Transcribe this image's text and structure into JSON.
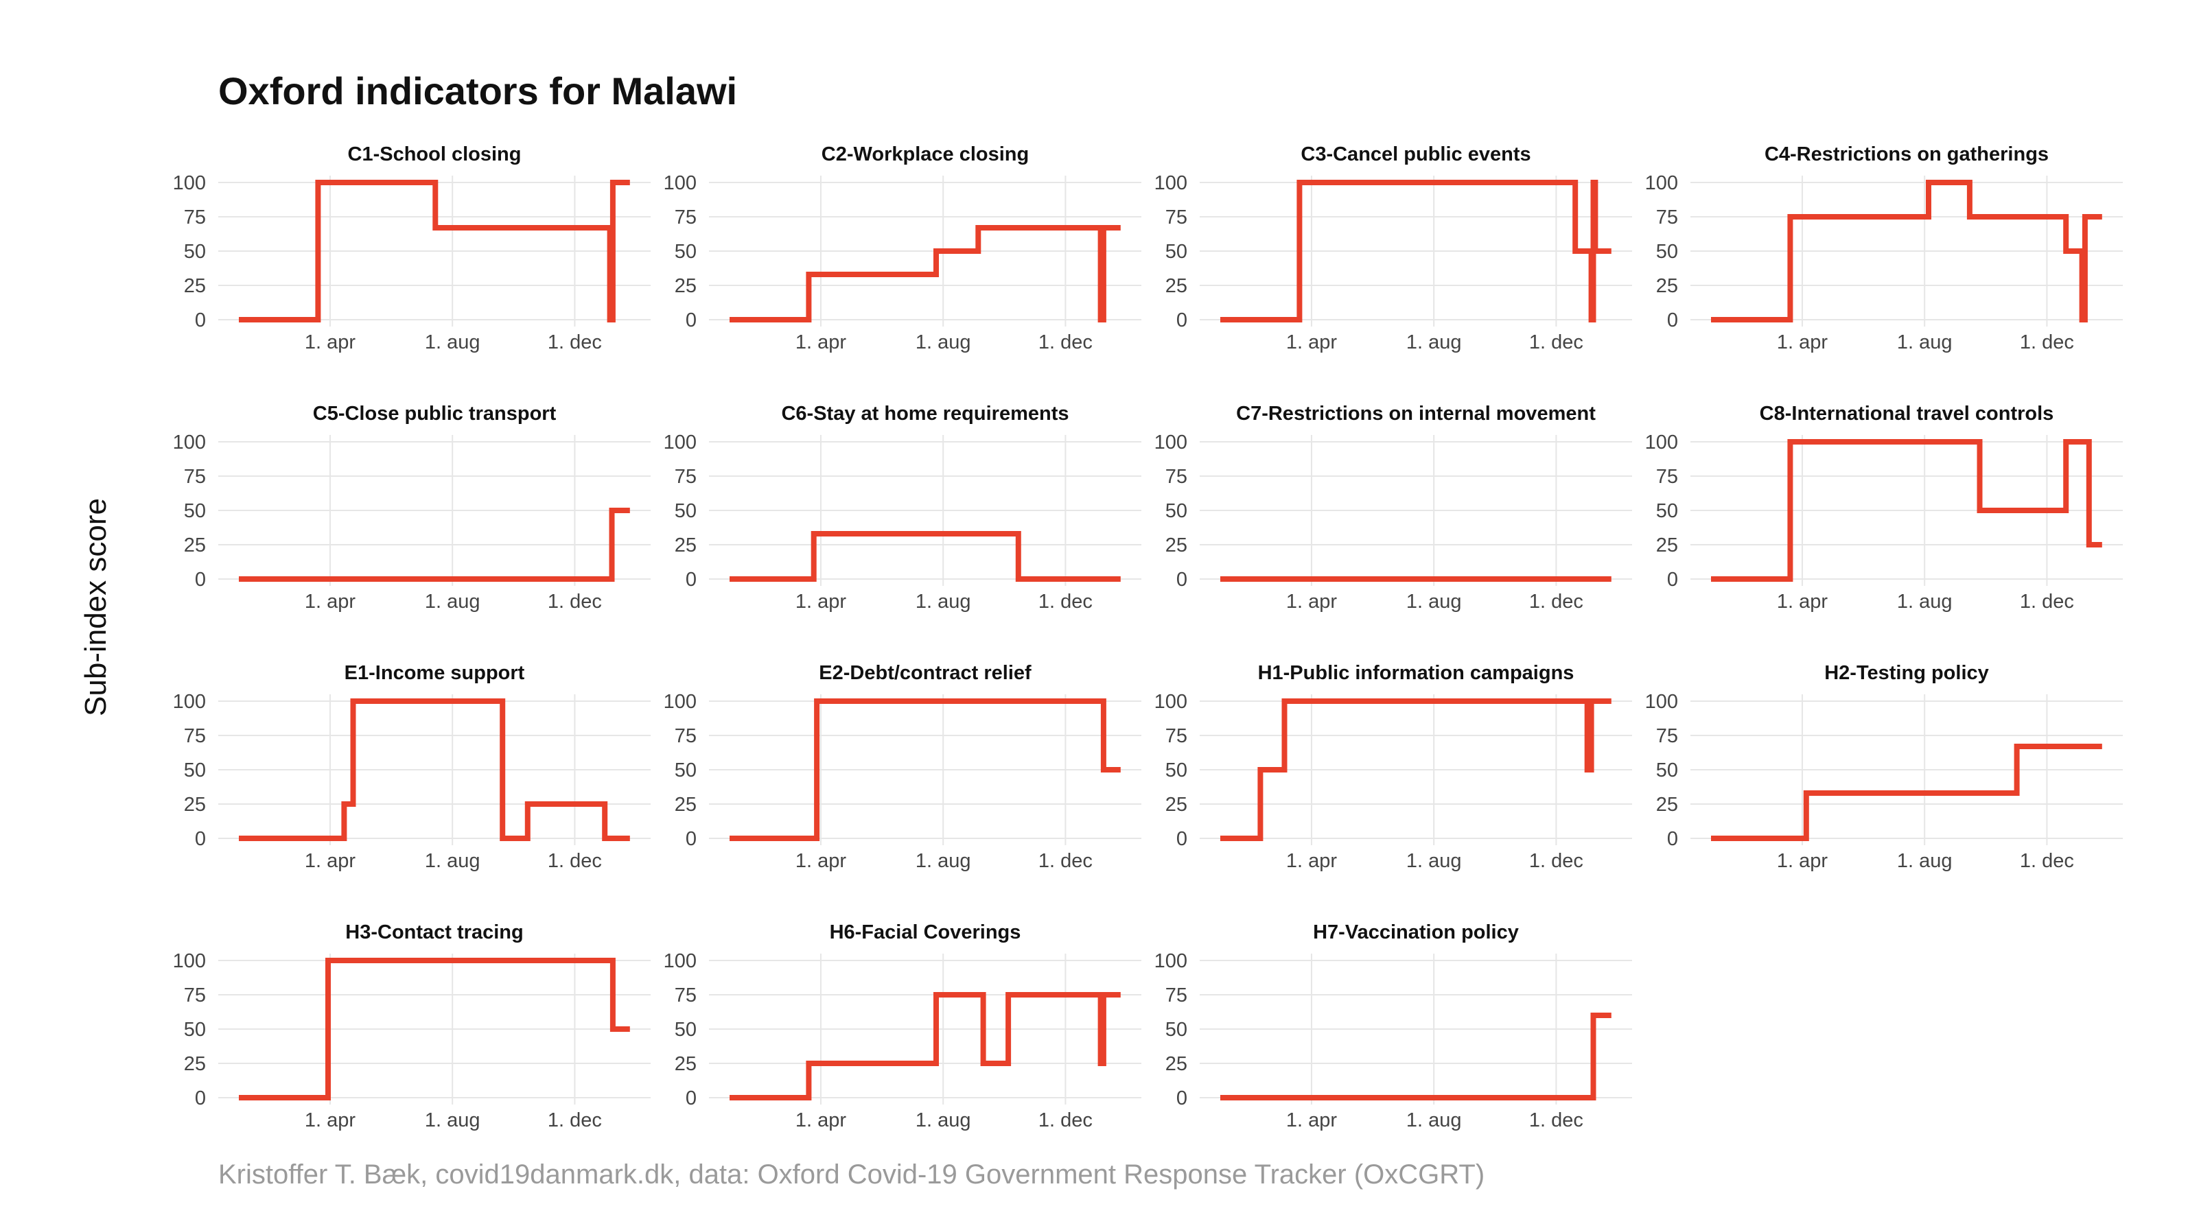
{
  "title": "Oxford indicators for Malawi",
  "ylabel": "Sub-index score",
  "caption": "Kristoffer T. Bæk, covid19danmark.dk, data: Oxford Covid-19 Government Response Tracker (OxCGRT)",
  "colors": {
    "line": "#e8402a",
    "grid": "#e6e6e6"
  },
  "chart_data": {
    "type": "line",
    "layout": "small-multiples 4x4",
    "x_ticks": [
      {
        "label": "1. apr",
        "value": "2020-04-01"
      },
      {
        "label": "1. aug",
        "value": "2020-08-01"
      },
      {
        "label": "1. dec",
        "value": "2020-12-01"
      }
    ],
    "xlim": [
      "2020-01-01",
      "2021-02-01"
    ],
    "y_ticks": [
      0,
      25,
      50,
      75,
      100
    ],
    "ylim": [
      0,
      100
    ],
    "grid": true,
    "panels": [
      {
        "title": "C1-School closing",
        "points": [
          [
            "2020-01-01",
            0
          ],
          [
            "2020-03-20",
            0
          ],
          [
            "2020-03-20",
            100
          ],
          [
            "2020-07-15",
            100
          ],
          [
            "2020-07-15",
            67
          ],
          [
            "2021-01-05",
            67
          ],
          [
            "2021-01-05",
            0
          ],
          [
            "2021-01-08",
            0
          ],
          [
            "2021-01-08",
            100
          ],
          [
            "2021-01-25",
            100
          ]
        ]
      },
      {
        "title": "C2-Workplace closing",
        "points": [
          [
            "2020-01-01",
            0
          ],
          [
            "2020-03-20",
            0
          ],
          [
            "2020-03-20",
            33
          ],
          [
            "2020-07-25",
            33
          ],
          [
            "2020-07-25",
            50
          ],
          [
            "2020-09-05",
            50
          ],
          [
            "2020-09-05",
            67
          ],
          [
            "2021-01-05",
            67
          ],
          [
            "2021-01-05",
            0
          ],
          [
            "2021-01-08",
            0
          ],
          [
            "2021-01-08",
            67
          ],
          [
            "2021-01-25",
            67
          ]
        ]
      },
      {
        "title": "C3-Cancel public events",
        "points": [
          [
            "2020-01-01",
            0
          ],
          [
            "2020-03-20",
            0
          ],
          [
            "2020-03-20",
            100
          ],
          [
            "2020-12-20",
            100
          ],
          [
            "2020-12-20",
            50
          ],
          [
            "2021-01-05",
            50
          ],
          [
            "2021-01-05",
            0
          ],
          [
            "2021-01-07",
            0
          ],
          [
            "2021-01-07",
            100
          ],
          [
            "2021-01-09",
            100
          ],
          [
            "2021-01-09",
            50
          ],
          [
            "2021-01-25",
            50
          ]
        ]
      },
      {
        "title": "C4-Restrictions on gatherings",
        "points": [
          [
            "2020-01-01",
            0
          ],
          [
            "2020-03-20",
            0
          ],
          [
            "2020-03-20",
            75
          ],
          [
            "2020-08-05",
            75
          ],
          [
            "2020-08-05",
            100
          ],
          [
            "2020-09-15",
            100
          ],
          [
            "2020-09-15",
            75
          ],
          [
            "2020-12-20",
            75
          ],
          [
            "2020-12-20",
            50
          ],
          [
            "2021-01-05",
            50
          ],
          [
            "2021-01-05",
            0
          ],
          [
            "2021-01-08",
            0
          ],
          [
            "2021-01-08",
            75
          ],
          [
            "2021-01-25",
            75
          ]
        ]
      },
      {
        "title": "C5-Close public transport",
        "points": [
          [
            "2020-01-01",
            0
          ],
          [
            "2021-01-07",
            0
          ],
          [
            "2021-01-07",
            50
          ],
          [
            "2021-01-25",
            50
          ]
        ]
      },
      {
        "title": "C6-Stay at home requirements",
        "points": [
          [
            "2020-01-01",
            0
          ],
          [
            "2020-03-25",
            0
          ],
          [
            "2020-03-25",
            33
          ],
          [
            "2020-10-15",
            33
          ],
          [
            "2020-10-15",
            0
          ],
          [
            "2021-01-25",
            0
          ]
        ]
      },
      {
        "title": "C7-Restrictions on internal movement",
        "points": [
          [
            "2020-01-01",
            0
          ],
          [
            "2021-01-25",
            0
          ]
        ]
      },
      {
        "title": "C8-International travel controls",
        "points": [
          [
            "2020-01-01",
            0
          ],
          [
            "2020-03-20",
            0
          ],
          [
            "2020-03-20",
            100
          ],
          [
            "2020-09-25",
            100
          ],
          [
            "2020-09-25",
            50
          ],
          [
            "2020-12-20",
            50
          ],
          [
            "2020-12-20",
            100
          ],
          [
            "2021-01-12",
            100
          ],
          [
            "2021-01-12",
            25
          ],
          [
            "2021-01-25",
            25
          ]
        ]
      },
      {
        "title": "E1-Income support",
        "points": [
          [
            "2020-01-01",
            0
          ],
          [
            "2020-04-15",
            0
          ],
          [
            "2020-04-15",
            25
          ],
          [
            "2020-04-24",
            25
          ],
          [
            "2020-04-24",
            100
          ],
          [
            "2020-09-20",
            100
          ],
          [
            "2020-09-20",
            0
          ],
          [
            "2020-10-15",
            0
          ],
          [
            "2020-10-15",
            25
          ],
          [
            "2020-12-31",
            25
          ],
          [
            "2020-12-31",
            0
          ],
          [
            "2021-01-25",
            0
          ]
        ]
      },
      {
        "title": "E2-Debt/contract relief",
        "points": [
          [
            "2020-01-01",
            0
          ],
          [
            "2020-03-28",
            0
          ],
          [
            "2020-03-28",
            100
          ],
          [
            "2021-01-08",
            100
          ],
          [
            "2021-01-08",
            50
          ],
          [
            "2021-01-25",
            50
          ]
        ]
      },
      {
        "title": "H1-Public information campaigns",
        "points": [
          [
            "2020-01-01",
            0
          ],
          [
            "2020-02-10",
            0
          ],
          [
            "2020-02-10",
            50
          ],
          [
            "2020-03-05",
            50
          ],
          [
            "2020-03-05",
            100
          ],
          [
            "2021-01-01",
            100
          ],
          [
            "2021-01-01",
            50
          ],
          [
            "2021-01-05",
            50
          ],
          [
            "2021-01-05",
            100
          ],
          [
            "2021-01-25",
            100
          ]
        ]
      },
      {
        "title": "H2-Testing policy",
        "points": [
          [
            "2020-01-01",
            0
          ],
          [
            "2020-04-05",
            0
          ],
          [
            "2020-04-05",
            33
          ],
          [
            "2020-11-01",
            33
          ],
          [
            "2020-11-01",
            67
          ],
          [
            "2021-01-25",
            67
          ]
        ]
      },
      {
        "title": "H3-Contact tracing",
        "points": [
          [
            "2020-01-01",
            0
          ],
          [
            "2020-03-30",
            0
          ],
          [
            "2020-03-30",
            100
          ],
          [
            "2021-01-08",
            100
          ],
          [
            "2021-01-08",
            50
          ],
          [
            "2021-01-25",
            50
          ]
        ]
      },
      {
        "title": "H6-Facial Coverings",
        "points": [
          [
            "2020-01-01",
            0
          ],
          [
            "2020-03-20",
            0
          ],
          [
            "2020-03-20",
            25
          ],
          [
            "2020-07-25",
            25
          ],
          [
            "2020-07-25",
            75
          ],
          [
            "2020-09-10",
            75
          ],
          [
            "2020-09-10",
            25
          ],
          [
            "2020-10-05",
            25
          ],
          [
            "2020-10-05",
            75
          ],
          [
            "2021-01-05",
            75
          ],
          [
            "2021-01-05",
            25
          ],
          [
            "2021-01-08",
            25
          ],
          [
            "2021-01-08",
            75
          ],
          [
            "2021-01-25",
            75
          ]
        ]
      },
      {
        "title": "H7-Vaccination policy",
        "points": [
          [
            "2020-01-01",
            0
          ],
          [
            "2021-01-07",
            0
          ],
          [
            "2021-01-07",
            60
          ],
          [
            "2021-01-25",
            60
          ]
        ]
      }
    ]
  }
}
